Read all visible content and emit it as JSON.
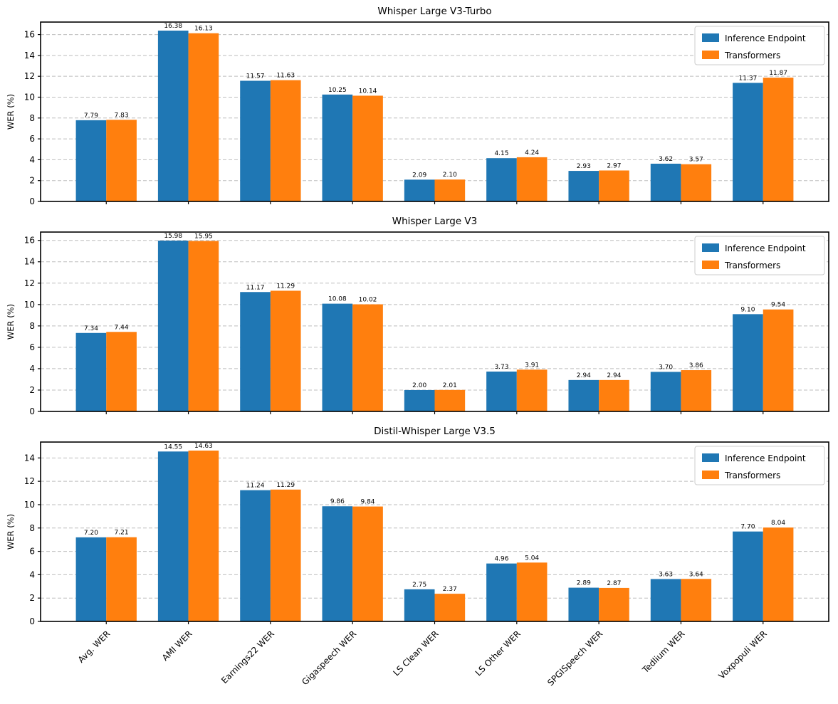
{
  "figure": {
    "background": "#ffffff",
    "ylabel": "WER (%)",
    "colors": {
      "inference_endpoint": "#1f77b4",
      "transformers": "#ff7f0e",
      "grid": "#bdbdbd",
      "spine": "#000000"
    }
  },
  "chart_data": [
    {
      "type": "bar",
      "title": "Whisper Large V3-Turbo",
      "ylabel": "WER (%)",
      "categories": [
        "Avg. WER",
        "AMI WER",
        "Earnings22 WER",
        "Gigaspeech WER",
        "LS Clean WER",
        "LS Other WER",
        "SPGISpeech WER",
        "Tedlium WER",
        "Voxpopuli WER"
      ],
      "series": [
        {
          "name": "Inference Endpoint",
          "color": "#1f77b4",
          "values": [
            7.79,
            16.38,
            11.57,
            10.25,
            2.09,
            4.15,
            2.93,
            3.62,
            11.37
          ]
        },
        {
          "name": "Transformers",
          "color": "#ff7f0e",
          "values": [
            7.83,
            16.13,
            11.63,
            10.14,
            2.1,
            4.24,
            2.97,
            3.57,
            11.87
          ]
        }
      ],
      "yticks": [
        0,
        2,
        4,
        6,
        8,
        10,
        12,
        14,
        16
      ],
      "ylim": [
        0,
        17.2
      ],
      "grid": "dashed-horizontal",
      "legend_position": "upper right",
      "show_x_labels": false
    },
    {
      "type": "bar",
      "title": "Whisper Large V3",
      "ylabel": "WER (%)",
      "categories": [
        "Avg. WER",
        "AMI WER",
        "Earnings22 WER",
        "Gigaspeech WER",
        "LS Clean WER",
        "LS Other WER",
        "SPGISpeech WER",
        "Tedlium WER",
        "Voxpopuli WER"
      ],
      "series": [
        {
          "name": "Inference Endpoint",
          "color": "#1f77b4",
          "values": [
            7.34,
            15.98,
            11.17,
            10.08,
            2.0,
            3.73,
            2.94,
            3.7,
            9.1
          ]
        },
        {
          "name": "Transformers",
          "color": "#ff7f0e",
          "values": [
            7.44,
            15.95,
            11.29,
            10.02,
            2.01,
            3.91,
            2.94,
            3.86,
            9.54
          ]
        }
      ],
      "yticks": [
        0,
        2,
        4,
        6,
        8,
        10,
        12,
        14,
        16
      ],
      "ylim": [
        0,
        16.78
      ],
      "grid": "dashed-horizontal",
      "legend_position": "upper right",
      "show_x_labels": false
    },
    {
      "type": "bar",
      "title": "Distil-Whisper Large V3.5",
      "ylabel": "WER (%)",
      "categories": [
        "Avg. WER",
        "AMI WER",
        "Earnings22 WER",
        "Gigaspeech WER",
        "LS Clean WER",
        "LS Other WER",
        "SPGISpeech WER",
        "Tedlium WER",
        "Voxpopuli WER"
      ],
      "series": [
        {
          "name": "Inference Endpoint",
          "color": "#1f77b4",
          "values": [
            7.2,
            14.55,
            11.24,
            9.86,
            2.75,
            4.96,
            2.89,
            3.63,
            7.7
          ]
        },
        {
          "name": "Transformers",
          "color": "#ff7f0e",
          "values": [
            7.21,
            14.63,
            11.29,
            9.84,
            2.37,
            5.04,
            2.87,
            3.64,
            8.04
          ]
        }
      ],
      "yticks": [
        0,
        2,
        4,
        6,
        8,
        10,
        12,
        14
      ],
      "ylim": [
        0,
        15.36
      ],
      "grid": "dashed-horizontal",
      "legend_position": "upper right",
      "show_x_labels": true
    }
  ]
}
